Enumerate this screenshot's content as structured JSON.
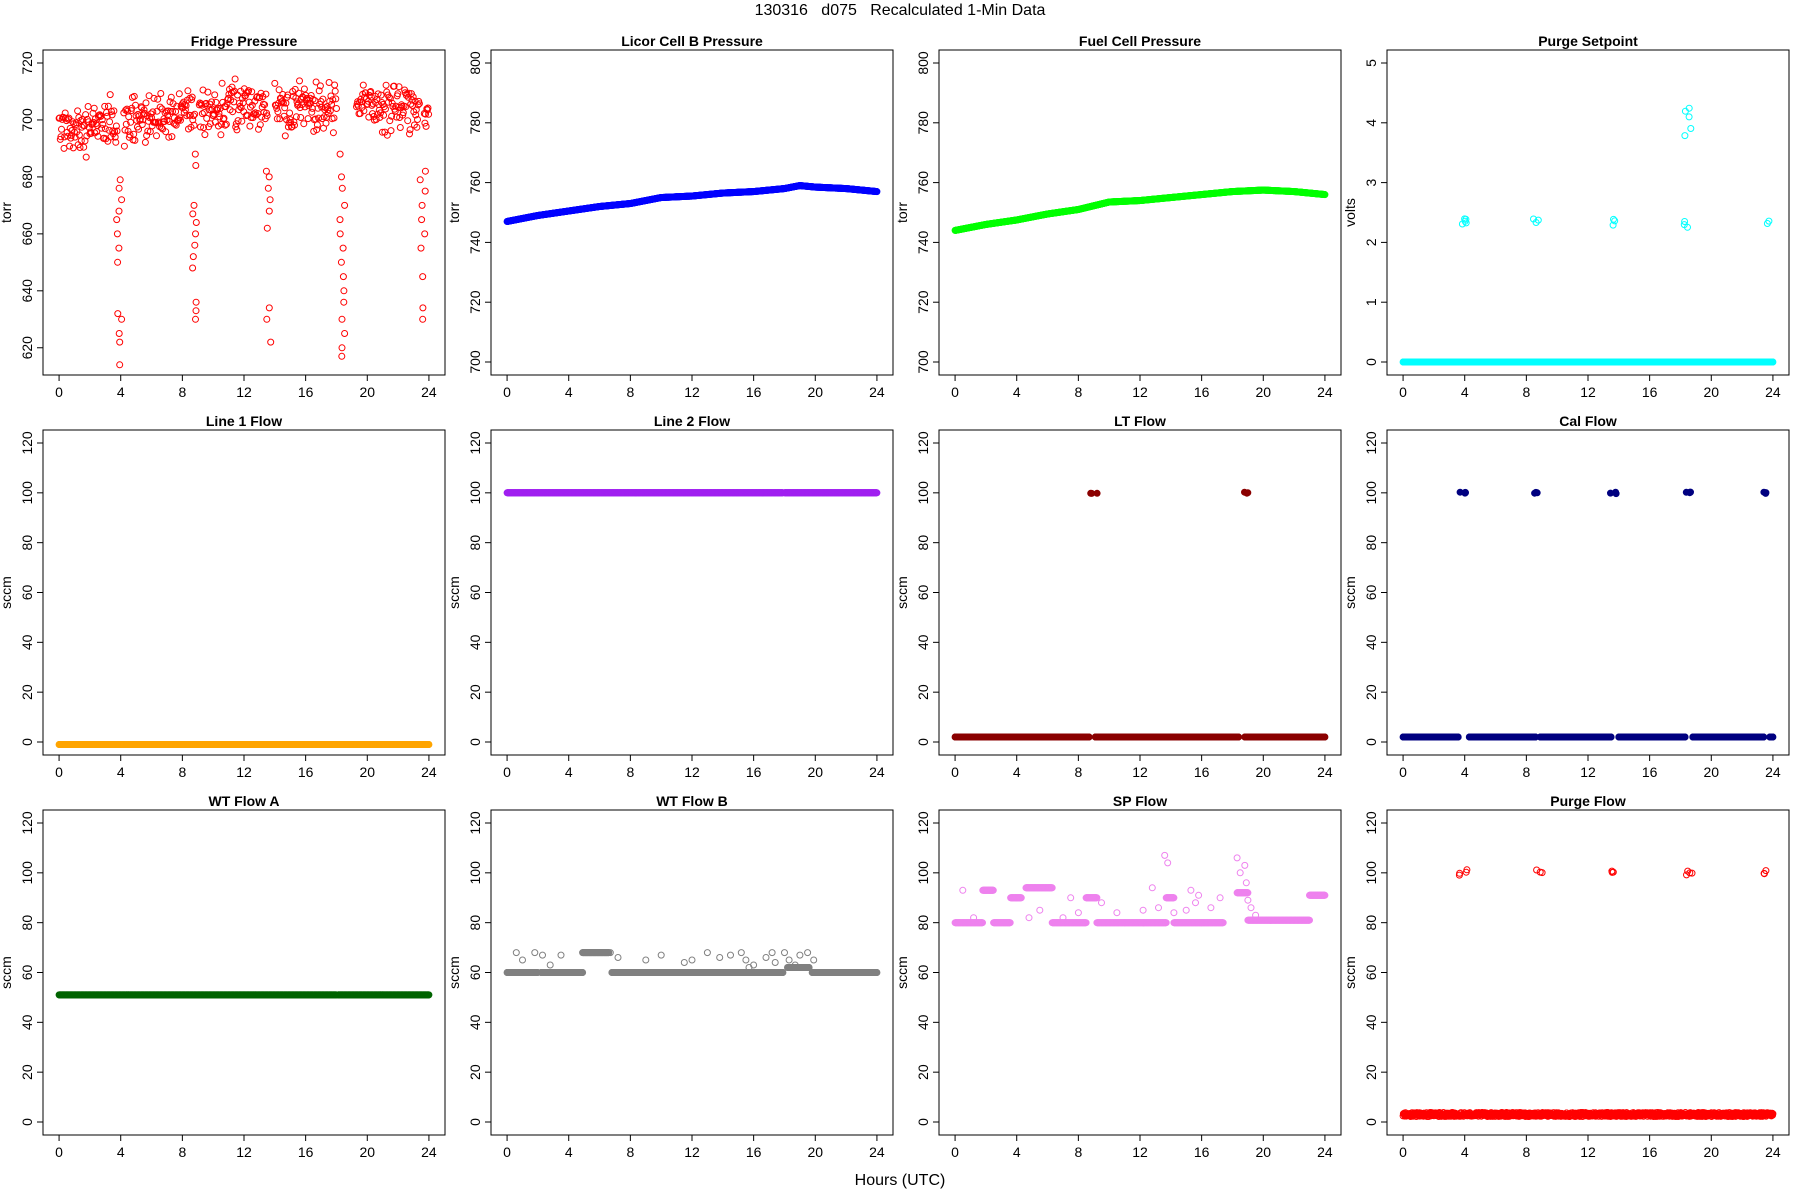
{
  "figure": {
    "title": "130316   d075   Recalculated 1-Min Data",
    "xlabel": "Hours (UTC)",
    "x_ticks": [
      0,
      4,
      8,
      12,
      16,
      20,
      24
    ],
    "xlim": [
      0,
      24
    ]
  },
  "chart_data": [
    {
      "type": "scatter",
      "title": "Fridge Pressure",
      "ylabel": "torr",
      "ylim": [
        615,
        720
      ],
      "y_ticks": [
        620,
        640,
        660,
        680,
        700,
        720
      ],
      "color": "#ff0000",
      "marker": "open-circle",
      "baseline": {
        "segments": [
          [
            0,
            3.8
          ],
          [
            4.2,
            8.8
          ],
          [
            9.1,
            13.5
          ],
          [
            14.0,
            18.0
          ],
          [
            19.3,
            23.4
          ],
          [
            23.7,
            24
          ]
        ],
        "mean": 701,
        "spread": 8,
        "trend": [
          [
            0,
            697
          ],
          [
            4,
            699
          ],
          [
            8,
            702
          ],
          [
            12,
            705
          ],
          [
            16,
            705
          ],
          [
            20,
            705
          ],
          [
            24,
            704
          ]
        ]
      },
      "spikes": [
        {
          "x": 3.9,
          "values": [
            614,
            622,
            625,
            630,
            632,
            650,
            655,
            660,
            665,
            668,
            672,
            676,
            679
          ]
        },
        {
          "x": 8.8,
          "values": [
            630,
            633,
            636,
            648,
            652,
            656,
            660,
            664,
            667,
            670,
            684,
            688
          ]
        },
        {
          "x": 13.6,
          "values": [
            622,
            630,
            634,
            662,
            668,
            672,
            676,
            680,
            682
          ]
        },
        {
          "x": 18.4,
          "values": [
            617,
            620,
            625,
            630,
            636,
            640,
            645,
            650,
            655,
            660,
            665,
            670,
            676,
            680,
            688
          ]
        },
        {
          "x": 23.6,
          "values": [
            630,
            634,
            645,
            655,
            660,
            665,
            670,
            675,
            679,
            682
          ]
        }
      ]
    },
    {
      "type": "scatter",
      "title": "Licor Cell B Pressure",
      "ylabel": "torr",
      "ylim": [
        700,
        800
      ],
      "y_ticks": [
        700,
        720,
        740,
        760,
        780,
        800
      ],
      "color": "#0000ff",
      "marker": "filled-circle",
      "line": [
        [
          0,
          747
        ],
        [
          2,
          749
        ],
        [
          4,
          750.5
        ],
        [
          6,
          752
        ],
        [
          8,
          753
        ],
        [
          10,
          755
        ],
        [
          12,
          755.5
        ],
        [
          14,
          756.5
        ],
        [
          16,
          757
        ],
        [
          18,
          758
        ],
        [
          19,
          759
        ],
        [
          20,
          758.5
        ],
        [
          22,
          758
        ],
        [
          24,
          757
        ]
      ]
    },
    {
      "type": "scatter",
      "title": "Fuel Cell Pressure",
      "ylabel": "torr",
      "ylim": [
        700,
        800
      ],
      "y_ticks": [
        700,
        720,
        740,
        760,
        780,
        800
      ],
      "color": "#00ff00",
      "marker": "filled-circle",
      "line": [
        [
          0,
          744
        ],
        [
          2,
          746
        ],
        [
          4,
          747.5
        ],
        [
          6,
          749.5
        ],
        [
          8,
          751
        ],
        [
          10,
          753.5
        ],
        [
          12,
          754
        ],
        [
          14,
          755
        ],
        [
          16,
          756
        ],
        [
          18,
          757
        ],
        [
          20,
          757.5
        ],
        [
          22,
          757
        ],
        [
          24,
          756
        ]
      ]
    },
    {
      "type": "scatter",
      "title": "Purge Setpoint",
      "ylabel": "volts",
      "ylim": [
        0,
        5
      ],
      "y_ticks": [
        0,
        1,
        2,
        3,
        4,
        5
      ],
      "color": "#00ffff",
      "marker": "open-circle",
      "constant": {
        "value": 0,
        "segments": [
          [
            0,
            24
          ]
        ]
      },
      "clusters": [
        {
          "x": 3.9,
          "values": [
            2.3,
            2.35,
            2.4,
            2.33,
            2.38
          ]
        },
        {
          "x": 8.7,
          "values": [
            2.32,
            2.38,
            2.4
          ]
        },
        {
          "x": 13.7,
          "values": [
            2.3,
            2.35,
            2.38
          ]
        },
        {
          "x": 18.5,
          "values": [
            2.25,
            2.3,
            2.35,
            3.8,
            3.9,
            4.1,
            4.2,
            4.25
          ]
        },
        {
          "x": 23.5,
          "values": [
            2.32,
            2.35
          ]
        }
      ]
    },
    {
      "type": "scatter",
      "title": "Line 1 Flow",
      "ylabel": "sccm",
      "ylim": [
        0,
        120
      ],
      "y_ticks": [
        0,
        20,
        40,
        60,
        80,
        100,
        120
      ],
      "color": "#ffa500",
      "marker": "filled-circle",
      "constant": {
        "value": -1,
        "segments": [
          [
            0,
            18.0
          ],
          [
            18.1,
            24
          ]
        ]
      }
    },
    {
      "type": "scatter",
      "title": "Line 2 Flow",
      "ylabel": "sccm",
      "ylim": [
        0,
        120
      ],
      "y_ticks": [
        0,
        20,
        40,
        60,
        80,
        100,
        120
      ],
      "color": "#a020f0",
      "marker": "filled-circle",
      "constant": {
        "value": 100,
        "segments": [
          [
            0,
            17.9
          ],
          [
            18.0,
            24
          ]
        ]
      }
    },
    {
      "type": "scatter",
      "title": "LT Flow",
      "ylabel": "sccm",
      "ylim": [
        0,
        120
      ],
      "y_ticks": [
        0,
        20,
        40,
        60,
        80,
        100,
        120
      ],
      "color": "#8b0000",
      "marker": "filled-circle",
      "constant": {
        "value": 2,
        "segments": [
          [
            0,
            8.7
          ],
          [
            9.1,
            18.4
          ],
          [
            18.8,
            24
          ]
        ]
      },
      "clusters": [
        {
          "x": 9.0,
          "values": [
            100,
            100,
            100
          ]
        },
        {
          "x": 18.9,
          "values": [
            100,
            100,
            100
          ]
        }
      ]
    },
    {
      "type": "scatter",
      "title": "Cal Flow",
      "ylabel": "sccm",
      "ylim": [
        0,
        120
      ],
      "y_ticks": [
        0,
        20,
        40,
        60,
        80,
        100,
        120
      ],
      "color": "#000080",
      "marker": "filled-circle",
      "constant": {
        "value": 2,
        "segments": [
          [
            0,
            3.6
          ],
          [
            4.3,
            8.6
          ],
          [
            8.9,
            13.5
          ],
          [
            14.0,
            18.3
          ],
          [
            18.8,
            23.4
          ],
          [
            23.8,
            24
          ]
        ]
      },
      "clusters": [
        {
          "x": 3.9,
          "values": [
            100,
            100,
            100,
            100
          ]
        },
        {
          "x": 8.7,
          "values": [
            100,
            100,
            100
          ]
        },
        {
          "x": 13.7,
          "values": [
            100,
            100,
            100
          ]
        },
        {
          "x": 18.6,
          "values": [
            100,
            100,
            100,
            100
          ]
        },
        {
          "x": 23.6,
          "values": [
            100,
            100,
            100
          ]
        }
      ]
    },
    {
      "type": "scatter",
      "title": "WT Flow A",
      "ylabel": "sccm",
      "ylim": [
        0,
        120
      ],
      "y_ticks": [
        0,
        20,
        40,
        60,
        80,
        100,
        120
      ],
      "color": "#006400",
      "marker": "filled-circle",
      "constant": {
        "value": 51,
        "segments": [
          [
            0,
            18.0
          ],
          [
            18.1,
            24
          ]
        ]
      }
    },
    {
      "type": "scatter",
      "title": "WT Flow B",
      "ylabel": "sccm",
      "ylim": [
        0,
        120
      ],
      "y_ticks": [
        0,
        20,
        40,
        60,
        80,
        100,
        120
      ],
      "color": "#808080",
      "marker": "open-circle",
      "steps": [
        {
          "x": [
            0,
            2.0
          ],
          "value": 60
        },
        {
          "x": [
            2.2,
            4.9
          ],
          "value": 60
        },
        {
          "x": [
            4.9,
            6.6
          ],
          "value": 68
        },
        {
          "x": [
            6.8,
            17.9
          ],
          "value": 60
        },
        {
          "x": [
            18.2,
            19.6
          ],
          "value": 62
        },
        {
          "x": [
            19.8,
            24
          ],
          "value": 60
        }
      ],
      "scatter": [
        [
          0.6,
          68
        ],
        [
          1.0,
          65
        ],
        [
          1.8,
          68
        ],
        [
          2.3,
          67
        ],
        [
          2.8,
          63
        ],
        [
          3.5,
          67
        ],
        [
          6.7,
          68
        ],
        [
          7.2,
          66
        ],
        [
          9.0,
          65
        ],
        [
          10.0,
          67
        ],
        [
          11.5,
          64
        ],
        [
          12.0,
          65
        ],
        [
          13.0,
          68
        ],
        [
          13.8,
          66
        ],
        [
          14.5,
          67
        ],
        [
          15.2,
          68
        ],
        [
          15.5,
          65
        ],
        [
          15.7,
          62
        ],
        [
          16.0,
          63
        ],
        [
          16.8,
          66
        ],
        [
          17.2,
          68
        ],
        [
          17.4,
          64
        ],
        [
          18.0,
          68
        ],
        [
          18.3,
          65
        ],
        [
          18.7,
          63
        ],
        [
          19.0,
          67
        ],
        [
          19.5,
          68
        ],
        [
          19.9,
          65
        ]
      ]
    },
    {
      "type": "scatter",
      "title": "SP Flow",
      "ylabel": "sccm",
      "ylim": [
        0,
        120
      ],
      "y_ticks": [
        0,
        20,
        40,
        60,
        80,
        100,
        120
      ],
      "color": "#ee82ee",
      "marker": "open-circle",
      "steps": [
        {
          "x": [
            0,
            1.8
          ],
          "value": 80
        },
        {
          "x": [
            1.8,
            2.5
          ],
          "value": 93
        },
        {
          "x": [
            2.5,
            3.6
          ],
          "value": 80
        },
        {
          "x": [
            3.6,
            4.3
          ],
          "value": 90
        },
        {
          "x": [
            4.6,
            6.3
          ],
          "value": 94
        },
        {
          "x": [
            6.3,
            8.5
          ],
          "value": 80
        },
        {
          "x": [
            8.5,
            9.2
          ],
          "value": 90
        },
        {
          "x": [
            9.2,
            11.0
          ],
          "value": 80
        },
        {
          "x": [
            11.0,
            13.7
          ],
          "value": 80
        },
        {
          "x": [
            13.7,
            14.2
          ],
          "value": 90
        },
        {
          "x": [
            14.2,
            16.0
          ],
          "value": 80
        },
        {
          "x": [
            16.0,
            17.4
          ],
          "value": 80
        },
        {
          "x": [
            18.3,
            19.0
          ],
          "value": 92
        },
        {
          "x": [
            19.0,
            23.0
          ],
          "value": 81
        },
        {
          "x": [
            23.0,
            24
          ],
          "value": 91
        }
      ],
      "scatter": [
        [
          0.5,
          93
        ],
        [
          1.2,
          82
        ],
        [
          4.8,
          82
        ],
        [
          5.5,
          85
        ],
        [
          7.0,
          82
        ],
        [
          7.5,
          90
        ],
        [
          8.0,
          84
        ],
        [
          9.5,
          88
        ],
        [
          10.5,
          84
        ],
        [
          12.2,
          85
        ],
        [
          12.8,
          94
        ],
        [
          13.2,
          86
        ],
        [
          13.6,
          107
        ],
        [
          13.8,
          104
        ],
        [
          14.2,
          84
        ],
        [
          15.0,
          85
        ],
        [
          15.3,
          93
        ],
        [
          15.6,
          88
        ],
        [
          15.8,
          91
        ],
        [
          16.6,
          86
        ],
        [
          17.2,
          90
        ],
        [
          18.3,
          106
        ],
        [
          18.5,
          100
        ],
        [
          18.8,
          103
        ],
        [
          18.9,
          96
        ],
        [
          19.0,
          89
        ],
        [
          19.2,
          86
        ],
        [
          19.5,
          83
        ]
      ]
    },
    {
      "type": "scatter",
      "title": "Purge Flow",
      "ylabel": "sccm",
      "ylim": [
        0,
        120
      ],
      "y_ticks": [
        0,
        20,
        40,
        60,
        80,
        100,
        120
      ],
      "color": "#ff0000",
      "marker": "open-circle",
      "constant": {
        "value": 3,
        "segments": [
          [
            0,
            24
          ]
        ],
        "spread": 0.8
      },
      "clusters": [
        {
          "x": 3.9,
          "values": [
            99,
            100,
            101,
            100
          ]
        },
        {
          "x": 8.8,
          "values": [
            100,
            100,
            101
          ]
        },
        {
          "x": 13.8,
          "values": [
            100,
            100,
            101
          ]
        },
        {
          "x": 18.6,
          "values": [
            99,
            100,
            101,
            100
          ]
        },
        {
          "x": 23.6,
          "values": [
            100,
            100,
            101
          ]
        }
      ]
    }
  ]
}
